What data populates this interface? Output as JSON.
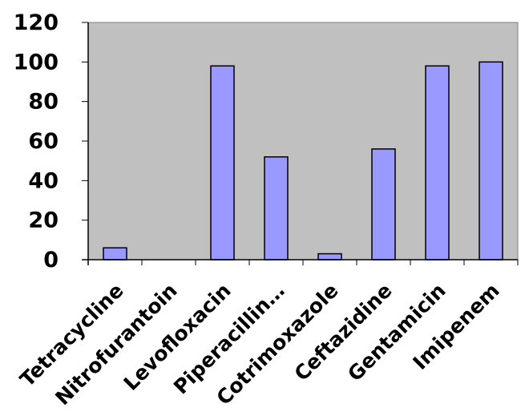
{
  "chart_data": {
    "type": "bar",
    "title": "",
    "xlabel": "",
    "ylabel": "",
    "ylim": [
      0,
      120
    ],
    "yticks": [
      0,
      20,
      40,
      60,
      80,
      100,
      120
    ],
    "grid": false,
    "categories": [
      "Tetracycline",
      "Nitrofurantoin",
      "Levofloxacin",
      "Piperacillin…",
      "Cotrimoxazole",
      "Ceftazidine",
      "Gentamicin",
      "Imipenem"
    ],
    "values": [
      6,
      0,
      98,
      52,
      3,
      56,
      98,
      100
    ],
    "colors": {
      "plot_background": "#c0c0c0",
      "bar_fill": "#9999ff",
      "bar_stroke": "#000000"
    }
  }
}
